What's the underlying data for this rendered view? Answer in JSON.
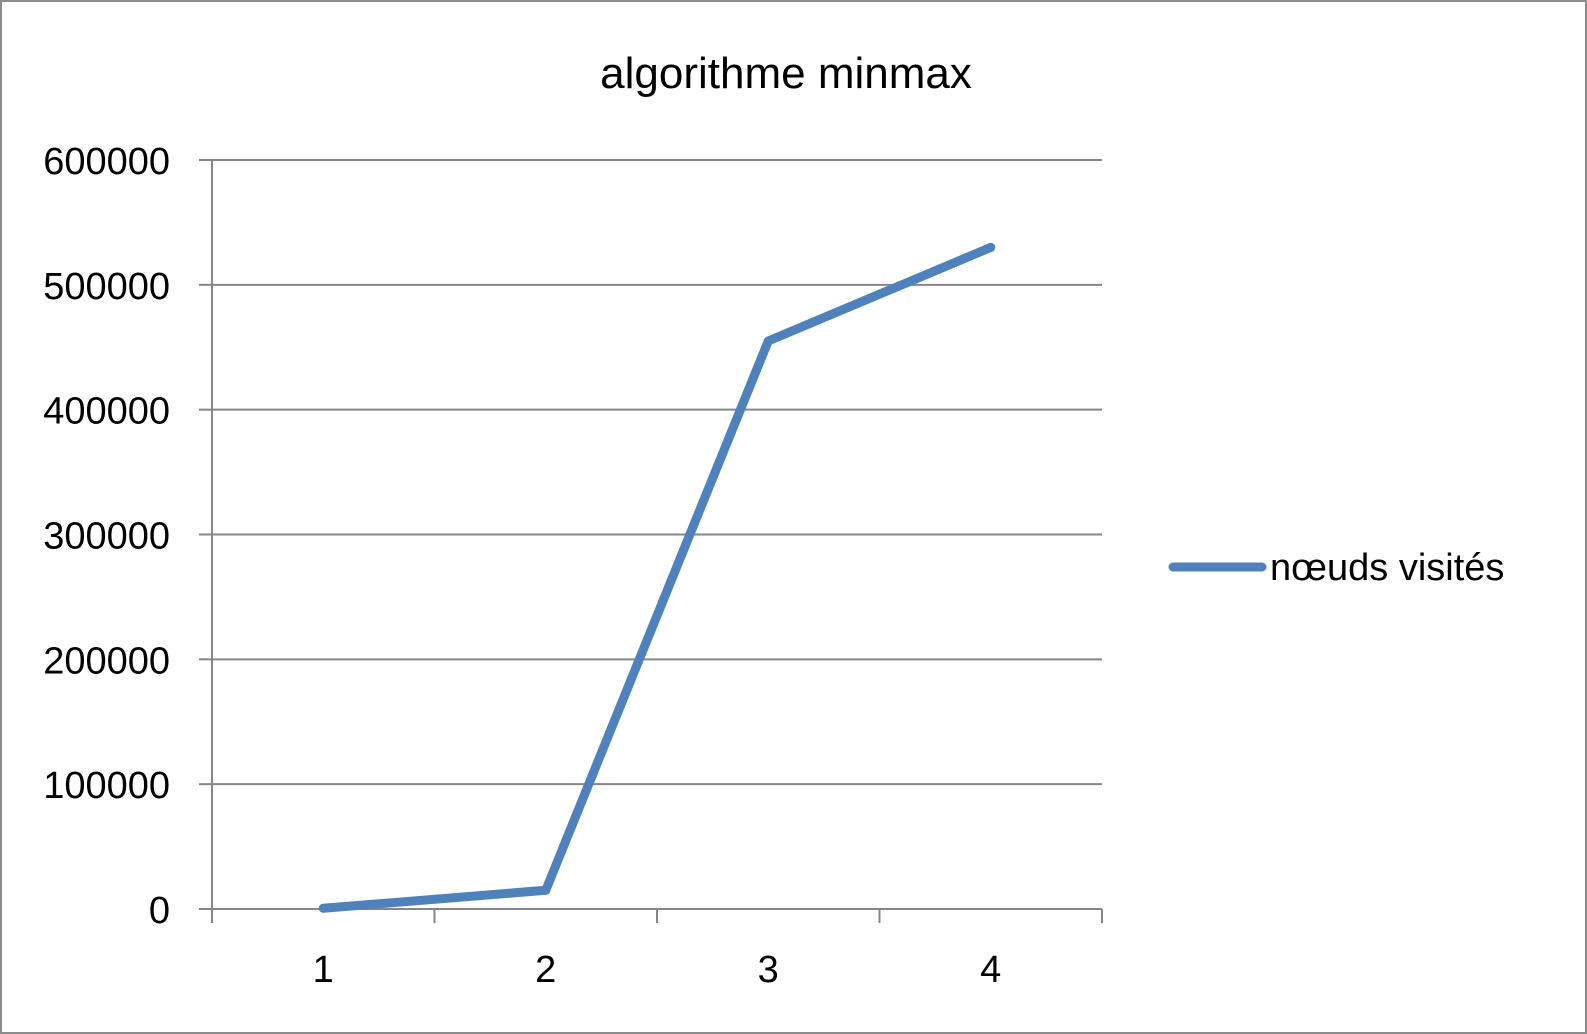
{
  "chart_data": {
    "type": "line",
    "title": "algorithme minmax",
    "categories": [
      "1",
      "2",
      "3",
      "4"
    ],
    "series": [
      {
        "name": "nœuds visités",
        "values": [
          600,
          15000,
          455000,
          530000
        ]
      }
    ],
    "ylim": [
      0,
      600000
    ],
    "y_ticks": [
      "0",
      "100000",
      "200000",
      "300000",
      "400000",
      "500000",
      "600000"
    ],
    "xlabel": "",
    "ylabel": "",
    "grid": true,
    "legend_position": "right",
    "colors": {
      "series": "#4f81bd",
      "grid": "#868686",
      "axis": "#868686",
      "border": "#8c8c8c"
    }
  }
}
